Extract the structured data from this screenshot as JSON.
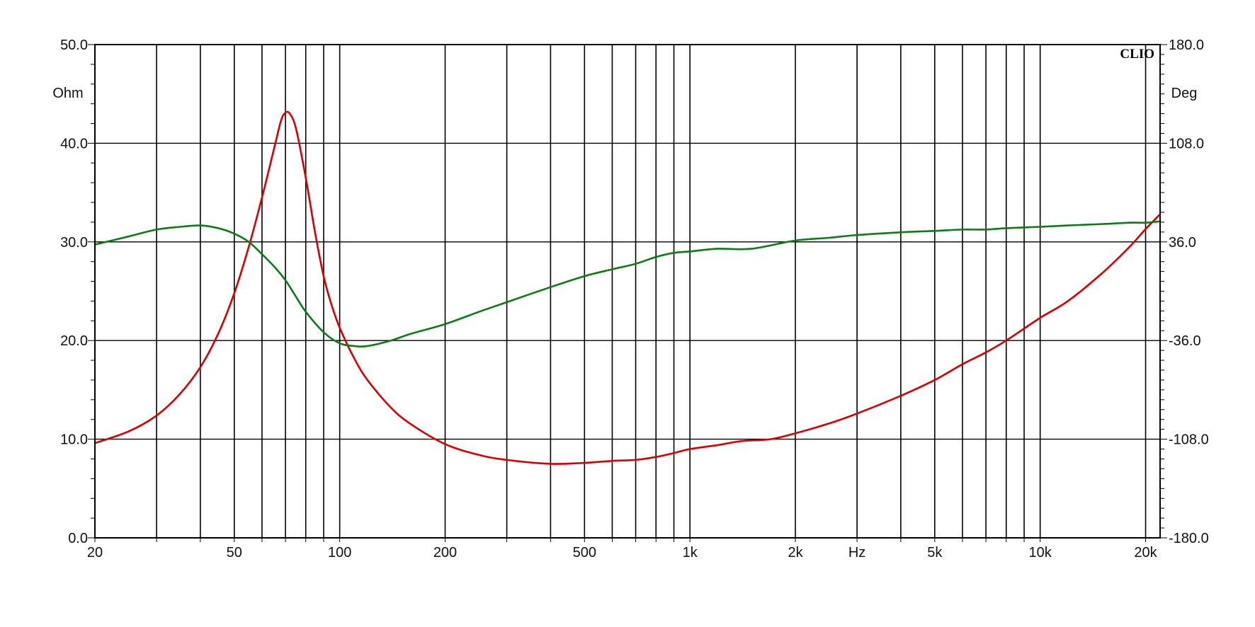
{
  "chart_data": {
    "type": "line",
    "brand": "CLIO",
    "x_scale": "log",
    "xlim": [
      20,
      22000
    ],
    "x_ticks": [
      {
        "value": 20,
        "label": "20"
      },
      {
        "value": 50,
        "label": "50"
      },
      {
        "value": 100,
        "label": "100"
      },
      {
        "value": 200,
        "label": "200"
      },
      {
        "value": 500,
        "label": "500"
      },
      {
        "value": 1000,
        "label": "1k"
      },
      {
        "value": 2000,
        "label": "2k"
      },
      {
        "value": 5000,
        "label": "5k"
      },
      {
        "value": 10000,
        "label": "10k"
      },
      {
        "value": 20000,
        "label": "20k"
      }
    ],
    "x_unit_label": "Hz",
    "x_unit_at": 3000,
    "x_gridlines": [
      20,
      30,
      40,
      50,
      60,
      70,
      80,
      90,
      100,
      200,
      300,
      400,
      500,
      600,
      700,
      800,
      900,
      1000,
      2000,
      3000,
      4000,
      5000,
      6000,
      7000,
      8000,
      9000,
      10000,
      20000
    ],
    "y_left": {
      "label": "Ohm",
      "ylim": [
        0,
        50
      ],
      "ticks": [
        "0.0",
        "10.0",
        "20.0",
        "30.0",
        "40.0",
        "50.0"
      ],
      "tick_values": [
        0,
        10,
        20,
        30,
        40,
        50
      ]
    },
    "y_right": {
      "label": "Deg",
      "ylim": [
        -180,
        180
      ],
      "ticks": [
        "-180.0",
        "-108.0",
        "-36.0",
        "36.0",
        "108.0",
        "180.0"
      ],
      "tick_values": [
        -180,
        -108,
        -36,
        36,
        108,
        180
      ]
    },
    "grid": true,
    "series": [
      {
        "color": "#d40000",
        "axis": "left",
        "points": [
          [
            20,
            9.6
          ],
          [
            25,
            10.8
          ],
          [
            30,
            12.4
          ],
          [
            35,
            14.6
          ],
          [
            40,
            17.3
          ],
          [
            45,
            20.7
          ],
          [
            50,
            24.8
          ],
          [
            55,
            29.5
          ],
          [
            60,
            34.5
          ],
          [
            65,
            39.5
          ],
          [
            68,
            42.3
          ],
          [
            70,
            43.1
          ],
          [
            72,
            43.0
          ],
          [
            75,
            41.5
          ],
          [
            80,
            36.5
          ],
          [
            85,
            31.0
          ],
          [
            90,
            26.5
          ],
          [
            95,
            23.5
          ],
          [
            100,
            21.3
          ],
          [
            110,
            18.2
          ],
          [
            120,
            16.0
          ],
          [
            140,
            13.2
          ],
          [
            160,
            11.5
          ],
          [
            200,
            9.5
          ],
          [
            250,
            8.4
          ],
          [
            300,
            7.9
          ],
          [
            400,
            7.5
          ],
          [
            500,
            7.6
          ],
          [
            600,
            7.8
          ],
          [
            700,
            7.9
          ],
          [
            800,
            8.2
          ],
          [
            900,
            8.6
          ],
          [
            1000,
            9.0
          ],
          [
            1200,
            9.4
          ],
          [
            1400,
            9.8
          ],
          [
            1700,
            10.0
          ],
          [
            2000,
            10.6
          ],
          [
            2500,
            11.6
          ],
          [
            3000,
            12.6
          ],
          [
            4000,
            14.4
          ],
          [
            5000,
            16.0
          ],
          [
            6000,
            17.6
          ],
          [
            7000,
            18.8
          ],
          [
            8000,
            20.0
          ],
          [
            10000,
            22.3
          ],
          [
            12000,
            24.0
          ],
          [
            15000,
            26.8
          ],
          [
            18000,
            29.5
          ],
          [
            20000,
            31.3
          ],
          [
            22000,
            32.8
          ]
        ]
      },
      {
        "color": "#0e7a1a",
        "axis": "right",
        "points": [
          [
            20,
            34
          ],
          [
            25,
            40
          ],
          [
            30,
            45
          ],
          [
            35,
            47
          ],
          [
            40,
            48
          ],
          [
            45,
            46
          ],
          [
            50,
            42
          ],
          [
            55,
            36
          ],
          [
            60,
            27
          ],
          [
            65,
            18
          ],
          [
            70,
            8
          ],
          [
            75,
            -4
          ],
          [
            80,
            -15
          ],
          [
            90,
            -30
          ],
          [
            100,
            -38
          ],
          [
            110,
            -40
          ],
          [
            120,
            -40
          ],
          [
            140,
            -36
          ],
          [
            160,
            -31
          ],
          [
            200,
            -24
          ],
          [
            250,
            -15
          ],
          [
            300,
            -8
          ],
          [
            400,
            3
          ],
          [
            500,
            11
          ],
          [
            600,
            16
          ],
          [
            700,
            20
          ],
          [
            800,
            25
          ],
          [
            900,
            28
          ],
          [
            1000,
            29
          ],
          [
            1200,
            31
          ],
          [
            1500,
            31
          ],
          [
            2000,
            37
          ],
          [
            2500,
            39
          ],
          [
            3000,
            41
          ],
          [
            4000,
            43
          ],
          [
            5000,
            44
          ],
          [
            6000,
            45
          ],
          [
            7000,
            45
          ],
          [
            8000,
            46
          ],
          [
            10000,
            47
          ],
          [
            12000,
            48
          ],
          [
            15000,
            49
          ],
          [
            18000,
            50
          ],
          [
            20000,
            50
          ],
          [
            22000,
            51
          ]
        ]
      }
    ]
  }
}
